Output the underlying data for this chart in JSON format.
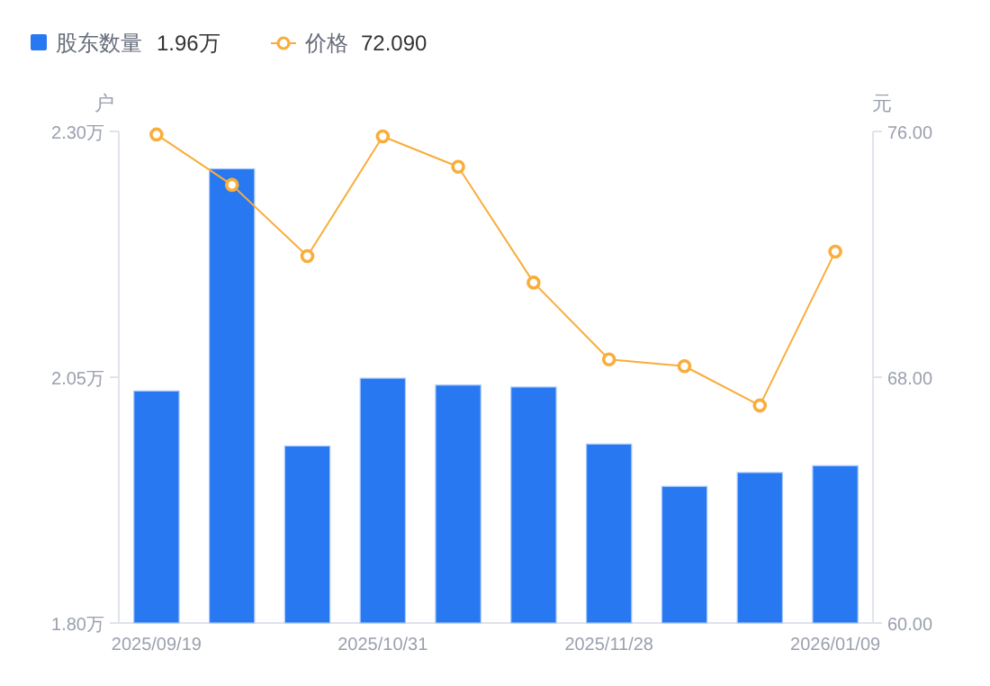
{
  "chart_data": {
    "type": "bar",
    "categories": [
      "2025/09/19",
      null,
      null,
      "2025/10/31",
      null,
      null,
      "2025/11/28",
      null,
      null,
      "2026/01/09"
    ],
    "series": [
      {
        "name": "股东数量",
        "color": "#2878f2",
        "values": [
          2.036,
          2.262,
          1.98,
          2.049,
          2.042,
          2.04,
          1.982,
          1.939,
          1.953,
          1.96
        ]
      },
      {
        "name": "价格",
        "type": "line",
        "axis": "y2",
        "color": "#f9ad3b",
        "marker": "circle",
        "values": [
          75.9,
          74.26,
          71.94,
          75.84,
          74.85,
          71.08,
          68.58,
          68.36,
          67.08,
          72.09
        ]
      }
    ],
    "ylabel": "户",
    "y2label": "元",
    "ylim": [
      1.8,
      2.3
    ],
    "yticks": [
      {
        "value": 1.8,
        "label": "1.80万"
      },
      {
        "value": 2.05,
        "label": "2.05万"
      },
      {
        "value": 2.3,
        "label": "2.30万"
      }
    ],
    "y2lim": [
      60,
      76
    ],
    "y2ticks": [
      {
        "value": 60,
        "label": "60.00"
      },
      {
        "value": 68,
        "label": "68.00"
      },
      {
        "value": 76,
        "label": "76.00"
      }
    ],
    "annotations": [
      "1.96万",
      "72.090"
    ],
    "legend": "top left",
    "grid": false
  }
}
